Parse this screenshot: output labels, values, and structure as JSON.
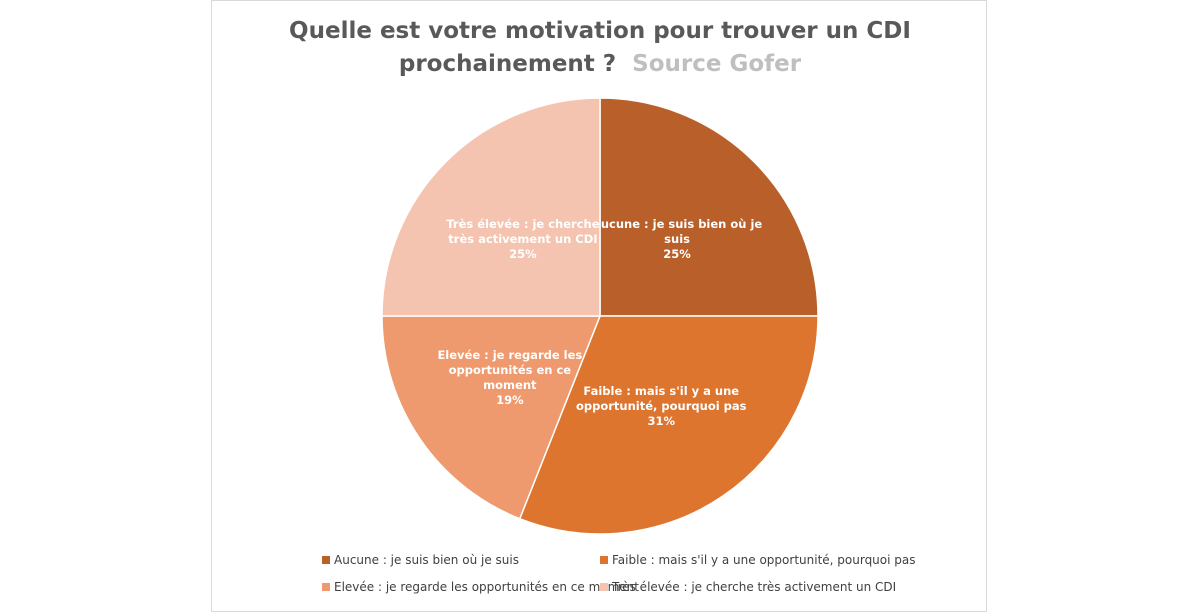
{
  "chart_data": {
    "type": "pie",
    "title": "Quelle est votre motivation pour trouver un CDI prochainement ?",
    "title_line1": "Quelle est votre motivation pour trouver un CDI",
    "title_line2": "prochainement ?",
    "subtitle": "Source Gofer",
    "slices": [
      {
        "label": "Aucune : je suis bien où je suis",
        "label_lines": [
          "Aucune : je suis bien où je",
          "suis"
        ],
        "value": 25,
        "value_label": "25%",
        "color": "#b9602a"
      },
      {
        "label": "Faible : mais s'il y a une opportunité, pourquoi pas",
        "label_lines": [
          "Faible : mais s'il y a une",
          "opportunité, pourquoi pas"
        ],
        "value": 31,
        "value_label": "31%",
        "color": "#dd752e"
      },
      {
        "label": "Elevée : je regarde les opportunités en ce moment",
        "label_lines": [
          "Elevée : je regarde les",
          "opportunités en ce",
          "moment"
        ],
        "value": 19,
        "value_label": "19%",
        "color": "#ee9a6e"
      },
      {
        "label": "Très élevée : je cherche très activement un CDI",
        "label_lines": [
          "Très élevée : je cherche",
          "très activement un CDI"
        ],
        "value": 25,
        "value_label": "25%",
        "color": "#f4c4b0"
      }
    ],
    "legend_position": "bottom"
  }
}
